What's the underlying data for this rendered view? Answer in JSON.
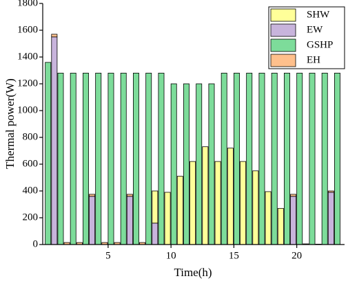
{
  "chart_data": {
    "type": "bar",
    "x_label": "Time(h)",
    "y_label": "Thermal power(W)",
    "x": [
      0,
      1,
      2,
      3,
      4,
      5,
      6,
      7,
      8,
      9,
      10,
      11,
      12,
      13,
      14,
      15,
      16,
      17,
      18,
      19,
      20,
      21,
      22,
      23
    ],
    "series": [
      {
        "name": "SHW",
        "color": "#ffff99",
        "stacked": true,
        "values": [
          0,
          0,
          0,
          0,
          0,
          0,
          0,
          0,
          240,
          390,
          510,
          620,
          730,
          620,
          720,
          620,
          550,
          395,
          270,
          0,
          0,
          0,
          0,
          0
        ]
      },
      {
        "name": "EW",
        "color": "#c8b4dc",
        "stacked": true,
        "values": [
          1550,
          0,
          0,
          360,
          0,
          0,
          360,
          0,
          160,
          0,
          0,
          0,
          0,
          0,
          0,
          0,
          0,
          0,
          0,
          360,
          0,
          0,
          390,
          0
        ]
      },
      {
        "name": "GSHP",
        "color": "#7ddc9a",
        "stacked": false,
        "values": [
          1360,
          1280,
          1280,
          1280,
          1280,
          1280,
          1280,
          1280,
          1280,
          1280,
          1200,
          1200,
          1200,
          1200,
          1280,
          1280,
          1280,
          1280,
          1280,
          1280,
          1280,
          1280,
          1280,
          1280
        ]
      },
      {
        "name": "EH",
        "color": "#ffc08c",
        "stacked": true,
        "values": [
          20,
          15,
          15,
          15,
          15,
          15,
          15,
          15,
          0,
          0,
          0,
          0,
          0,
          0,
          0,
          0,
          0,
          0,
          0,
          15,
          5,
          3,
          10,
          0
        ]
      }
    ],
    "stack_order": [
      1,
      0,
      3
    ],
    "xlim": [
      -0.2,
      23.8
    ],
    "xticks": [
      5,
      10,
      15,
      20
    ],
    "ylim": [
      0,
      1800
    ],
    "yticks": [
      0,
      200,
      400,
      600,
      800,
      1000,
      1200,
      1400,
      1600,
      1800
    ],
    "legend": "upper right"
  }
}
